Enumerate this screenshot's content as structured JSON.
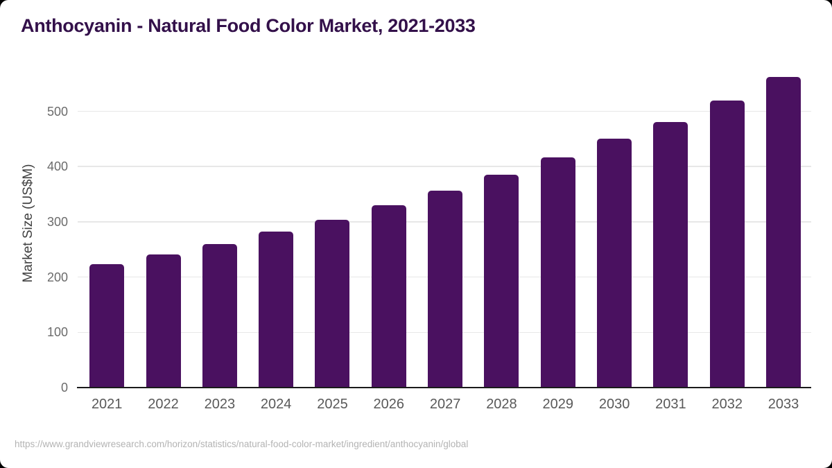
{
  "page": {
    "background_color": "#000000",
    "card_color": "#ffffff"
  },
  "chart_data": {
    "type": "bar",
    "title": "Anthocyanin - Natural Food Color Market, 2021-2033",
    "ylabel": "Market Size (US$M)",
    "xlabel": "",
    "categories": [
      "2021",
      "2022",
      "2023",
      "2024",
      "2025",
      "2026",
      "2027",
      "2028",
      "2029",
      "2030",
      "2031",
      "2032",
      "2033"
    ],
    "values": [
      223,
      241,
      260,
      282,
      304,
      330,
      356,
      385,
      417,
      450,
      480,
      519,
      562
    ],
    "yticks": [
      0,
      100,
      200,
      300,
      400,
      500
    ],
    "ylim": [
      0,
      580
    ],
    "grid": "horizontal",
    "legend": "none",
    "bar_color": "#4a1160",
    "title_color": "#33104a",
    "axis_line_color": "#1b1b1b",
    "gridline_color": "#e7e7e7",
    "tick_label_color": "#6b6b6b",
    "source": "https://www.grandviewresearch.com/horizon/statistics/natural-food-color-market/ingredient/anthocyanin/global"
  }
}
